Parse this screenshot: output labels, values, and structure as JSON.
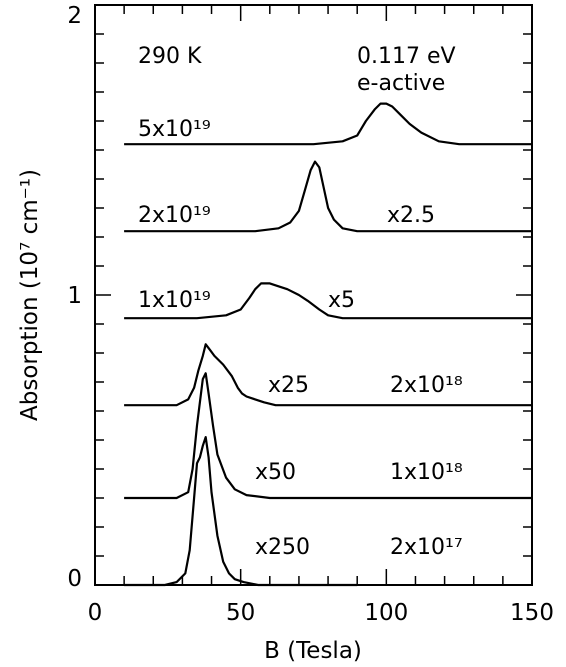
{
  "chart_data": {
    "type": "line",
    "xlabel": "B (Tesla)",
    "ylabel": "Absorption (10⁷ cm⁻¹)",
    "xlim": [
      0,
      150
    ],
    "ylim": [
      0,
      2
    ],
    "x_ticks": [
      "0",
      "50",
      "100",
      "150"
    ],
    "y_ticks": [
      "0",
      "1",
      "2"
    ],
    "grid": false,
    "annotations": {
      "temperature": "290 K",
      "energy": "0.117 eV",
      "mode": "e-active"
    },
    "series": [
      {
        "name": "5x10¹⁹",
        "multiplier": "",
        "x": [
          10,
          40,
          60,
          75,
          85,
          90,
          93,
          96,
          98,
          100,
          102,
          105,
          108,
          112,
          118,
          125,
          140,
          150
        ],
        "y": [
          1.52,
          1.52,
          1.52,
          1.52,
          1.53,
          1.55,
          1.6,
          1.64,
          1.66,
          1.66,
          1.65,
          1.62,
          1.59,
          1.56,
          1.53,
          1.52,
          1.52,
          1.52
        ]
      },
      {
        "name": "2x10¹⁹",
        "multiplier": "x2.5",
        "x": [
          10,
          40,
          55,
          63,
          67,
          70,
          72,
          74,
          75.5,
          77,
          78.5,
          80,
          82,
          85,
          90,
          100,
          120,
          150
        ],
        "y": [
          1.22,
          1.22,
          1.22,
          1.23,
          1.25,
          1.29,
          1.36,
          1.43,
          1.46,
          1.44,
          1.37,
          1.3,
          1.26,
          1.23,
          1.22,
          1.22,
          1.22,
          1.22
        ]
      },
      {
        "name": "1x10¹⁹",
        "multiplier": "x5",
        "x": [
          10,
          35,
          45,
          50,
          53,
          55,
          57,
          60,
          63,
          66,
          70,
          73,
          77,
          80,
          85,
          90,
          100,
          150
        ],
        "y": [
          0.92,
          0.92,
          0.93,
          0.95,
          0.99,
          1.02,
          1.04,
          1.04,
          1.03,
          1.02,
          1.0,
          0.98,
          0.95,
          0.93,
          0.92,
          0.92,
          0.92,
          0.92
        ]
      },
      {
        "name": "2x10¹⁸",
        "multiplier": "x25",
        "x": [
          10,
          28,
          32,
          34,
          35.5,
          37,
          38,
          39.5,
          41,
          44,
          47,
          49,
          50.5,
          52,
          55,
          58,
          62,
          70,
          150
        ],
        "y": [
          0.62,
          0.62,
          0.64,
          0.68,
          0.74,
          0.79,
          0.83,
          0.81,
          0.79,
          0.76,
          0.72,
          0.68,
          0.66,
          0.65,
          0.64,
          0.63,
          0.62,
          0.62,
          0.62
        ]
      },
      {
        "name": "1x10¹⁸",
        "multiplier": "x50",
        "x": [
          10,
          28,
          32,
          33.5,
          35,
          36,
          37,
          38,
          39,
          40.5,
          42,
          45,
          48,
          52,
          60,
          150
        ],
        "y": [
          0.3,
          0.3,
          0.32,
          0.4,
          0.55,
          0.63,
          0.71,
          0.73,
          0.66,
          0.55,
          0.45,
          0.37,
          0.33,
          0.31,
          0.3,
          0.3
        ]
      },
      {
        "name": "2x10¹⁷",
        "multiplier": "x250",
        "x": [
          10,
          24,
          28,
          31,
          32.5,
          34,
          35,
          36,
          37,
          38,
          39,
          40,
          42,
          44,
          46,
          48,
          51,
          56,
          60,
          90
        ],
        "y": [
          0.0,
          0.0,
          0.01,
          0.04,
          0.12,
          0.3,
          0.42,
          0.44,
          0.48,
          0.51,
          0.44,
          0.32,
          0.17,
          0.08,
          0.04,
          0.02,
          0.01,
          0.0,
          0.0,
          0.0
        ]
      }
    ]
  }
}
